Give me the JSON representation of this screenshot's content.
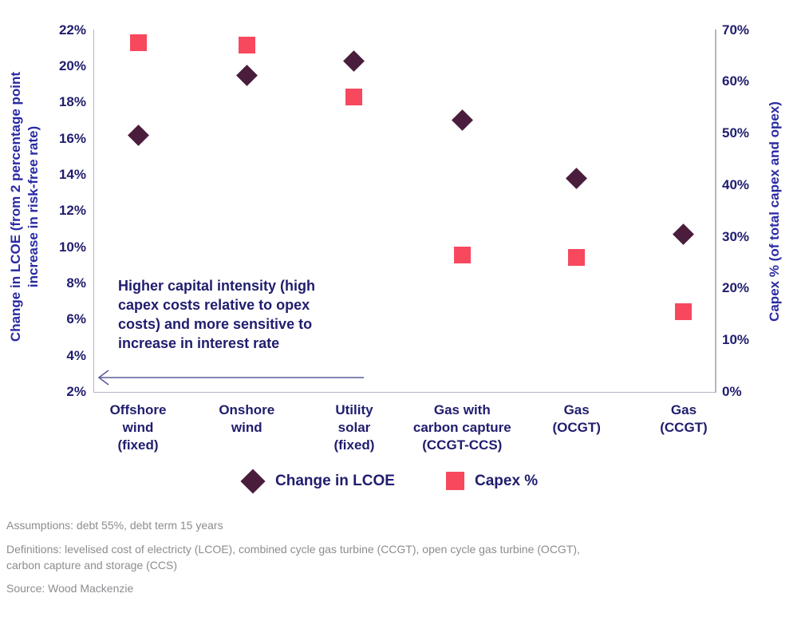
{
  "chart_data": {
    "type": "scatter",
    "title": "",
    "categories": [
      "Offshore wind (fixed)",
      "Onshore wind",
      "Utility solar (fixed)",
      "Gas with carbon capture (CCGT-CCS)",
      "Gas (OCGT)",
      "Gas (CCGT)"
    ],
    "category_labels_display": [
      "Offshore\nwind\n(fixed)",
      "Onshore\nwind",
      "Utility\nsolar\n(fixed)",
      "Gas with\ncarbon capture\n(CCGT-CCS)",
      "Gas\n(OCGT)",
      "Gas\n(CCGT)"
    ],
    "series": [
      {
        "name": "Change in LCOE",
        "axis": "left",
        "marker": "diamond",
        "color": "#4a1d3c",
        "values": [
          16.2,
          19.5,
          20.3,
          17.0,
          13.8,
          10.7
        ]
      },
      {
        "name": "Capex %",
        "axis": "right",
        "marker": "square",
        "color": "#f8485e",
        "values": [
          67.5,
          67.0,
          57.0,
          26.5,
          26.0,
          15.5
        ]
      }
    ],
    "left_axis": {
      "label": "Change in LCOE (from 2 percentage point\nincrease in risk-free rate)",
      "min": 2,
      "max": 22,
      "tick_values": [
        22,
        20,
        18,
        16,
        14,
        12,
        10,
        8,
        6,
        4,
        2
      ],
      "tick_labels": [
        "22%",
        "20%",
        "18%",
        "16%",
        "14%",
        "12%",
        "10%",
        "8%",
        "6%",
        "4%",
        "2%"
      ]
    },
    "right_axis": {
      "label": "Capex % (of total capex and opex)",
      "min": 0,
      "max": 70,
      "tick_values": [
        70,
        60,
        50,
        40,
        30,
        20,
        10,
        0
      ],
      "tick_labels": [
        "70%",
        "60%",
        "50%",
        "40%",
        "30%",
        "20%",
        "10%",
        "0%"
      ]
    },
    "annotation": {
      "text": "Higher capital intensity (high\ncapex costs relative to opex\ncosts) and more sensitive to\nincrease in interest rate",
      "arrow_direction": "left"
    },
    "legend": [
      "Change in LCOE",
      "Capex %"
    ],
    "legend_position": "bottom",
    "grid": false
  },
  "colors": {
    "navy_text": "#201d6e",
    "axis_title_blue": "#2a2aa4",
    "diamond": "#4a1d3c",
    "square": "#f8485e",
    "border_gray": "#b5b5c2",
    "arrow_blue": "#5c5c9e",
    "footer_gray": "#8b8d90"
  },
  "footer": {
    "assumptions": "Assumptions: debt 55%, debt term 15 years",
    "definitions": "Definitions: levelised cost of electricty (LCOE), combined cycle gas turbine (CCGT), open cycle gas turbine (OCGT),\ncarbon capture and storage (CCS)",
    "source": "Source: Wood Mackenzie"
  }
}
